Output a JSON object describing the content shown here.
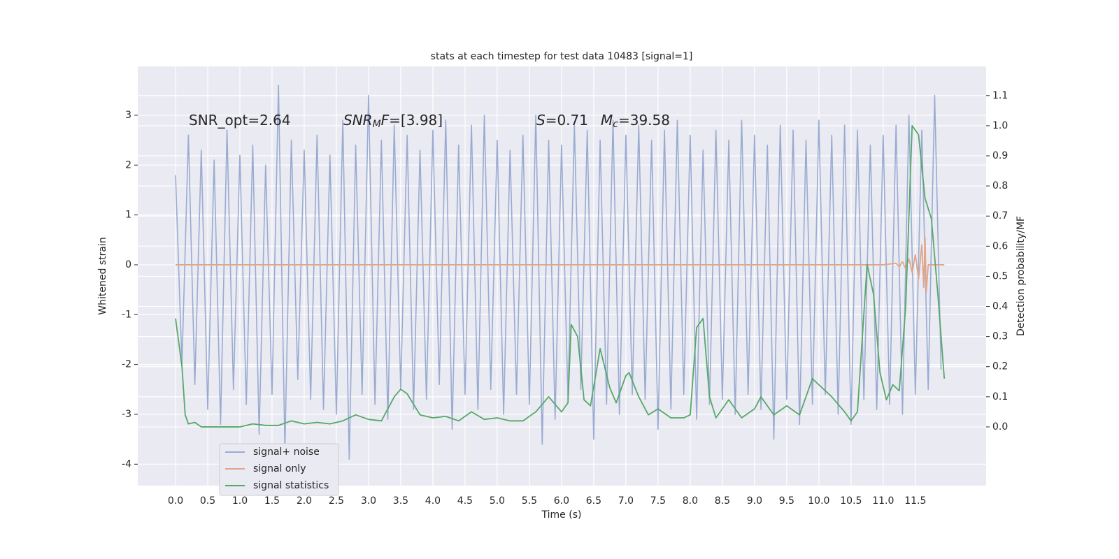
{
  "chart_data": {
    "type": "line",
    "title": "stats at each timestep for test data 10483 [signal=1]",
    "xlabel": "Time (s)",
    "ylabel": "Whitened strain",
    "y2label": "Detection probability/MF",
    "annotations": [
      [
        {
          "text": "SNR_opt=2.64"
        }
      ],
      [
        {
          "text": "SNR",
          "style": "italic"
        },
        {
          "text": "M",
          "style": "italic-sub"
        },
        {
          "text": "F",
          "style": "italic"
        },
        {
          "text": "=[3.98]"
        }
      ],
      [
        {
          "text": "S",
          "style": "italic"
        },
        {
          "text": "=0.71"
        }
      ],
      [
        {
          "text": "M",
          "style": "italic"
        },
        {
          "text": "c",
          "style": "italic-sub"
        },
        {
          "text": "=39.58"
        }
      ]
    ],
    "xlim": [
      -0.587,
      12.6
    ],
    "ylim": [
      -4.43,
      3.98
    ],
    "y2lim": [
      -0.195,
      1.197
    ],
    "xticks": [
      {
        "value": 0,
        "label": "0.0"
      },
      0.5,
      {
        "value": 1,
        "label": "1.0"
      },
      1.5,
      {
        "value": 2,
        "label": "2.0"
      },
      2.5,
      {
        "value": 3,
        "label": "3.0"
      },
      3.5,
      {
        "value": 4,
        "label": "4.0"
      },
      4.5,
      {
        "value": 5,
        "label": "5.0"
      },
      5.5,
      {
        "value": 6,
        "label": "6.0"
      },
      6.5,
      {
        "value": 7,
        "label": "7.0"
      },
      7.5,
      {
        "value": 8,
        "label": "8.0"
      },
      8.5,
      {
        "value": 9,
        "label": "9.0"
      },
      9.5,
      {
        "value": 10,
        "label": "10.0"
      },
      10.5,
      {
        "value": 11,
        "label": "11.0"
      },
      11.5
    ],
    "yticks": [
      -4,
      -3,
      -2,
      -1,
      0,
      1,
      2,
      3
    ],
    "y2ticks": [
      {
        "value": 0,
        "label": "0.0"
      },
      0.1,
      0.2,
      0.3,
      0.4,
      0.5,
      0.6,
      0.7,
      0.8,
      0.9,
      {
        "value": 1,
        "label": "1.0"
      },
      1.1
    ],
    "grid": true,
    "legend": "lower left",
    "series": [
      {
        "name": "signal+ noise",
        "color": "#9aabd1",
        "x": [
          0.0,
          0.1,
          0.2,
          0.3,
          0.4,
          0.5,
          0.6,
          0.7,
          0.8,
          0.9,
          1.0,
          1.1,
          1.2,
          1.3,
          1.4,
          1.5,
          1.6,
          1.7,
          1.8,
          1.9,
          2.0,
          2.1,
          2.2,
          2.3,
          2.4,
          2.5,
          2.6,
          2.7,
          2.8,
          2.9,
          3.0,
          3.1,
          3.2,
          3.3,
          3.4,
          3.5,
          3.6,
          3.7,
          3.8,
          3.9,
          4.0,
          4.1,
          4.2,
          4.3,
          4.4,
          4.5,
          4.6,
          4.7,
          4.8,
          4.9,
          5.0,
          5.1,
          5.2,
          5.3,
          5.4,
          5.5,
          5.6,
          5.7,
          5.8,
          5.9,
          6.0,
          6.1,
          6.2,
          6.3,
          6.4,
          6.5,
          6.6,
          6.7,
          6.8,
          6.9,
          7.0,
          7.1,
          7.2,
          7.3,
          7.4,
          7.5,
          7.6,
          7.7,
          7.8,
          7.9,
          8.0,
          8.1,
          8.2,
          8.3,
          8.4,
          8.5,
          8.6,
          8.7,
          8.8,
          8.9,
          9.0,
          9.1,
          9.2,
          9.3,
          9.4,
          9.5,
          9.6,
          9.7,
          9.8,
          9.9,
          10.0,
          10.1,
          10.2,
          10.3,
          10.4,
          10.5,
          10.6,
          10.7,
          10.8,
          10.9,
          11.0,
          11.1,
          11.2,
          11.3,
          11.4,
          11.5,
          11.6,
          11.7,
          11.8,
          11.9
        ],
        "values": [
          1.8,
          -2.0,
          2.6,
          -2.4,
          2.3,
          -2.9,
          2.1,
          -3.2,
          2.7,
          -2.5,
          2.2,
          -2.8,
          2.4,
          -3.4,
          2.0,
          -2.6,
          3.6,
          -3.7,
          2.5,
          -2.3,
          2.3,
          -2.7,
          2.6,
          -2.9,
          2.2,
          -3.0,
          2.9,
          -3.9,
          2.4,
          -2.6,
          3.4,
          -2.8,
          2.5,
          -3.1,
          2.8,
          -2.5,
          2.6,
          -2.9,
          2.3,
          -2.7,
          2.7,
          -2.4,
          2.9,
          -3.3,
          2.4,
          -2.6,
          2.8,
          -2.9,
          3.0,
          -2.5,
          2.5,
          -3.0,
          2.3,
          -2.6,
          2.6,
          -2.8,
          3.0,
          -3.6,
          2.5,
          -3.1,
          2.4,
          -2.7,
          2.8,
          -2.5,
          2.7,
          -3.5,
          2.5,
          -2.8,
          2.9,
          -3.0,
          2.6,
          -2.6,
          2.8,
          -2.7,
          2.5,
          -3.3,
          2.7,
          -2.9,
          2.9,
          -2.6,
          2.6,
          -3.1,
          2.3,
          -2.8,
          2.7,
          -2.7,
          2.5,
          -3.0,
          2.9,
          -2.6,
          2.6,
          -2.9,
          2.4,
          -3.5,
          2.8,
          -2.7,
          2.7,
          -3.2,
          2.5,
          -2.8,
          2.9,
          -2.6,
          2.6,
          -3.0,
          2.8,
          -3.2,
          2.7,
          -2.7,
          2.4,
          -2.9,
          2.6,
          -2.8,
          2.8,
          -3.0,
          3.0,
          -2.6,
          2.7,
          -2.5,
          3.4,
          -2.1
        ]
      },
      {
        "name": "signal only",
        "color": "#e0a58a",
        "x": [
          0.0,
          11.0,
          11.2,
          11.25,
          11.3,
          11.35,
          11.4,
          11.45,
          11.5,
          11.55,
          11.6,
          11.63,
          11.65,
          11.67,
          11.7,
          11.95
        ],
        "values": [
          0,
          0,
          0.03,
          -0.04,
          0.06,
          -0.08,
          0.12,
          -0.15,
          0.2,
          -0.28,
          0.4,
          -0.45,
          0.55,
          -0.55,
          0,
          0
        ]
      },
      {
        "name": "signal statistics",
        "color": "#55a868",
        "axis": "y2",
        "x": [
          0.0,
          0.1,
          0.15,
          0.2,
          0.3,
          0.4,
          0.6,
          0.8,
          1.0,
          1.2,
          1.4,
          1.6,
          1.8,
          2.0,
          2.2,
          2.4,
          2.6,
          2.8,
          3.0,
          3.2,
          3.4,
          3.5,
          3.6,
          3.8,
          4.0,
          4.2,
          4.4,
          4.6,
          4.8,
          5.0,
          5.2,
          5.4,
          5.6,
          5.8,
          6.0,
          6.1,
          6.15,
          6.25,
          6.35,
          6.45,
          6.6,
          6.75,
          6.85,
          7.0,
          7.05,
          7.2,
          7.35,
          7.5,
          7.7,
          7.9,
          8.0,
          8.1,
          8.2,
          8.3,
          8.4,
          8.6,
          8.8,
          9.0,
          9.1,
          9.3,
          9.5,
          9.7,
          9.9,
          10.0,
          10.2,
          10.4,
          10.5,
          10.6,
          10.75,
          10.85,
          10.95,
          11.05,
          11.15,
          11.25,
          11.35,
          11.45,
          11.55,
          11.65,
          11.75,
          11.85,
          11.95
        ],
        "values": [
          0.36,
          0.2,
          0.04,
          0.01,
          0.015,
          0.0,
          0.0,
          0.0,
          0.0,
          0.01,
          0.005,
          0.005,
          0.02,
          0.01,
          0.015,
          0.01,
          0.02,
          0.04,
          0.025,
          0.02,
          0.1,
          0.125,
          0.11,
          0.04,
          0.03,
          0.035,
          0.02,
          0.05,
          0.025,
          0.03,
          0.02,
          0.02,
          0.05,
          0.1,
          0.05,
          0.08,
          0.34,
          0.3,
          0.09,
          0.07,
          0.26,
          0.13,
          0.08,
          0.17,
          0.18,
          0.1,
          0.04,
          0.06,
          0.03,
          0.03,
          0.04,
          0.33,
          0.36,
          0.1,
          0.03,
          0.09,
          0.03,
          0.06,
          0.1,
          0.04,
          0.07,
          0.04,
          0.16,
          0.14,
          0.1,
          0.05,
          0.02,
          0.05,
          0.54,
          0.44,
          0.18,
          0.09,
          0.14,
          0.12,
          0.4,
          1.0,
          0.97,
          0.76,
          0.69,
          0.44,
          0.16
        ]
      }
    ]
  }
}
